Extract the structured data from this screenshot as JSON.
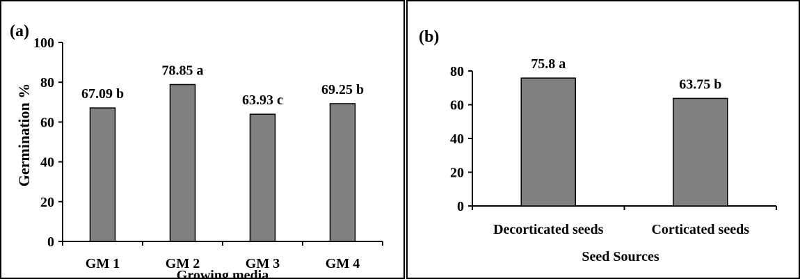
{
  "chart_data": [
    {
      "type": "bar",
      "panel_label": "(a)",
      "categories": [
        "GM 1",
        "GM 2",
        "GM 3",
        "GM 4"
      ],
      "values": [
        67.09,
        78.85,
        63.93,
        69.25
      ],
      "data_labels": [
        "67.09 b",
        "78.85 a",
        "63.93 c",
        "69.25 b"
      ],
      "xlabel": "Growing media",
      "ylabel": "Germination %",
      "ylim": [
        0,
        100
      ],
      "yticks": [
        0,
        20,
        40,
        60,
        80,
        100
      ],
      "bar_color": "#808080",
      "grid": false
    },
    {
      "type": "bar",
      "panel_label": "(b)",
      "categories": [
        "Decorticated seeds",
        "Corticated seeds"
      ],
      "values": [
        75.8,
        63.75
      ],
      "data_labels": [
        "75.8 a",
        "63.75 b"
      ],
      "xlabel": "Seed Sources",
      "ylabel": "",
      "ylim": [
        0,
        80
      ],
      "yticks": [
        0,
        20,
        40,
        60,
        80
      ],
      "bar_color": "#808080",
      "grid": false
    }
  ]
}
